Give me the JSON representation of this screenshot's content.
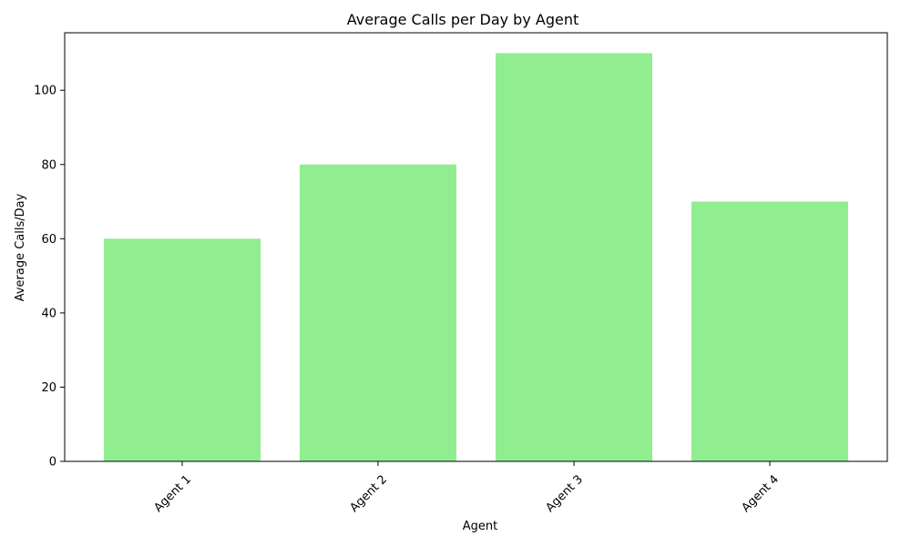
{
  "chart_data": {
    "type": "bar",
    "title": "Average Calls per Day by Agent",
    "xlabel": "Agent",
    "ylabel": "Average Calls/Day",
    "categories": [
      "Agent 1",
      "Agent 2",
      "Agent 3",
      "Agent 4"
    ],
    "values": [
      60,
      80,
      110,
      70
    ],
    "ylim": [
      0,
      115.5
    ],
    "yticks": [
      0,
      20,
      40,
      60,
      80,
      100
    ],
    "grid": false,
    "x_tick_rotation_deg": 45,
    "bar_color": "#90ee90",
    "axis_color": "#000000"
  }
}
